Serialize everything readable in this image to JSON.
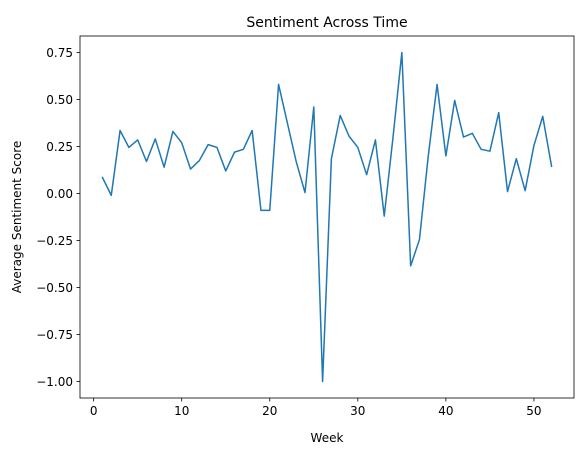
{
  "chart_data": {
    "type": "line",
    "title": "Sentiment Across Time",
    "xlabel": "Week",
    "ylabel": "Average Sentiment Score",
    "xlim": [
      -1.55,
      54.55
    ],
    "ylim": [
      -1.0875,
      0.8375
    ],
    "xticks": [
      0,
      10,
      20,
      30,
      40,
      50
    ],
    "yticks": [
      -1.0,
      -0.75,
      -0.5,
      -0.25,
      0.0,
      0.25,
      0.5,
      0.75
    ],
    "ytick_labels": [
      "−1.00",
      "−0.75",
      "−0.50",
      "−0.25",
      "0.00",
      "0.25",
      "0.50",
      "0.75"
    ],
    "grid": false,
    "series": [
      {
        "color": "#1f77b4",
        "x": [
          1,
          2,
          3,
          4,
          5,
          6,
          7,
          8,
          9,
          10,
          11,
          12,
          13,
          14,
          15,
          16,
          17,
          18,
          19,
          20,
          21,
          22,
          23,
          24,
          25,
          26,
          27,
          28,
          29,
          30,
          31,
          32,
          33,
          34,
          35,
          36,
          37,
          38,
          39,
          40,
          41,
          42,
          43,
          44,
          45,
          46,
          47,
          48,
          49,
          50,
          51,
          52
        ],
        "y": [
          0.085,
          -0.01,
          0.335,
          0.245,
          0.285,
          0.17,
          0.29,
          0.14,
          0.33,
          0.27,
          0.13,
          0.175,
          0.26,
          0.245,
          0.12,
          0.22,
          0.235,
          0.335,
          -0.09,
          -0.09,
          0.58,
          0.375,
          0.17,
          0.005,
          0.46,
          -1.0,
          0.185,
          0.415,
          0.305,
          0.245,
          0.1,
          0.285,
          -0.12,
          0.3,
          0.75,
          -0.385,
          -0.245,
          0.2,
          0.58,
          0.2,
          0.495,
          0.3,
          0.32,
          0.235,
          0.225,
          0.43,
          0.01,
          0.185,
          0.015,
          0.255,
          0.41,
          0.145
        ]
      }
    ]
  }
}
